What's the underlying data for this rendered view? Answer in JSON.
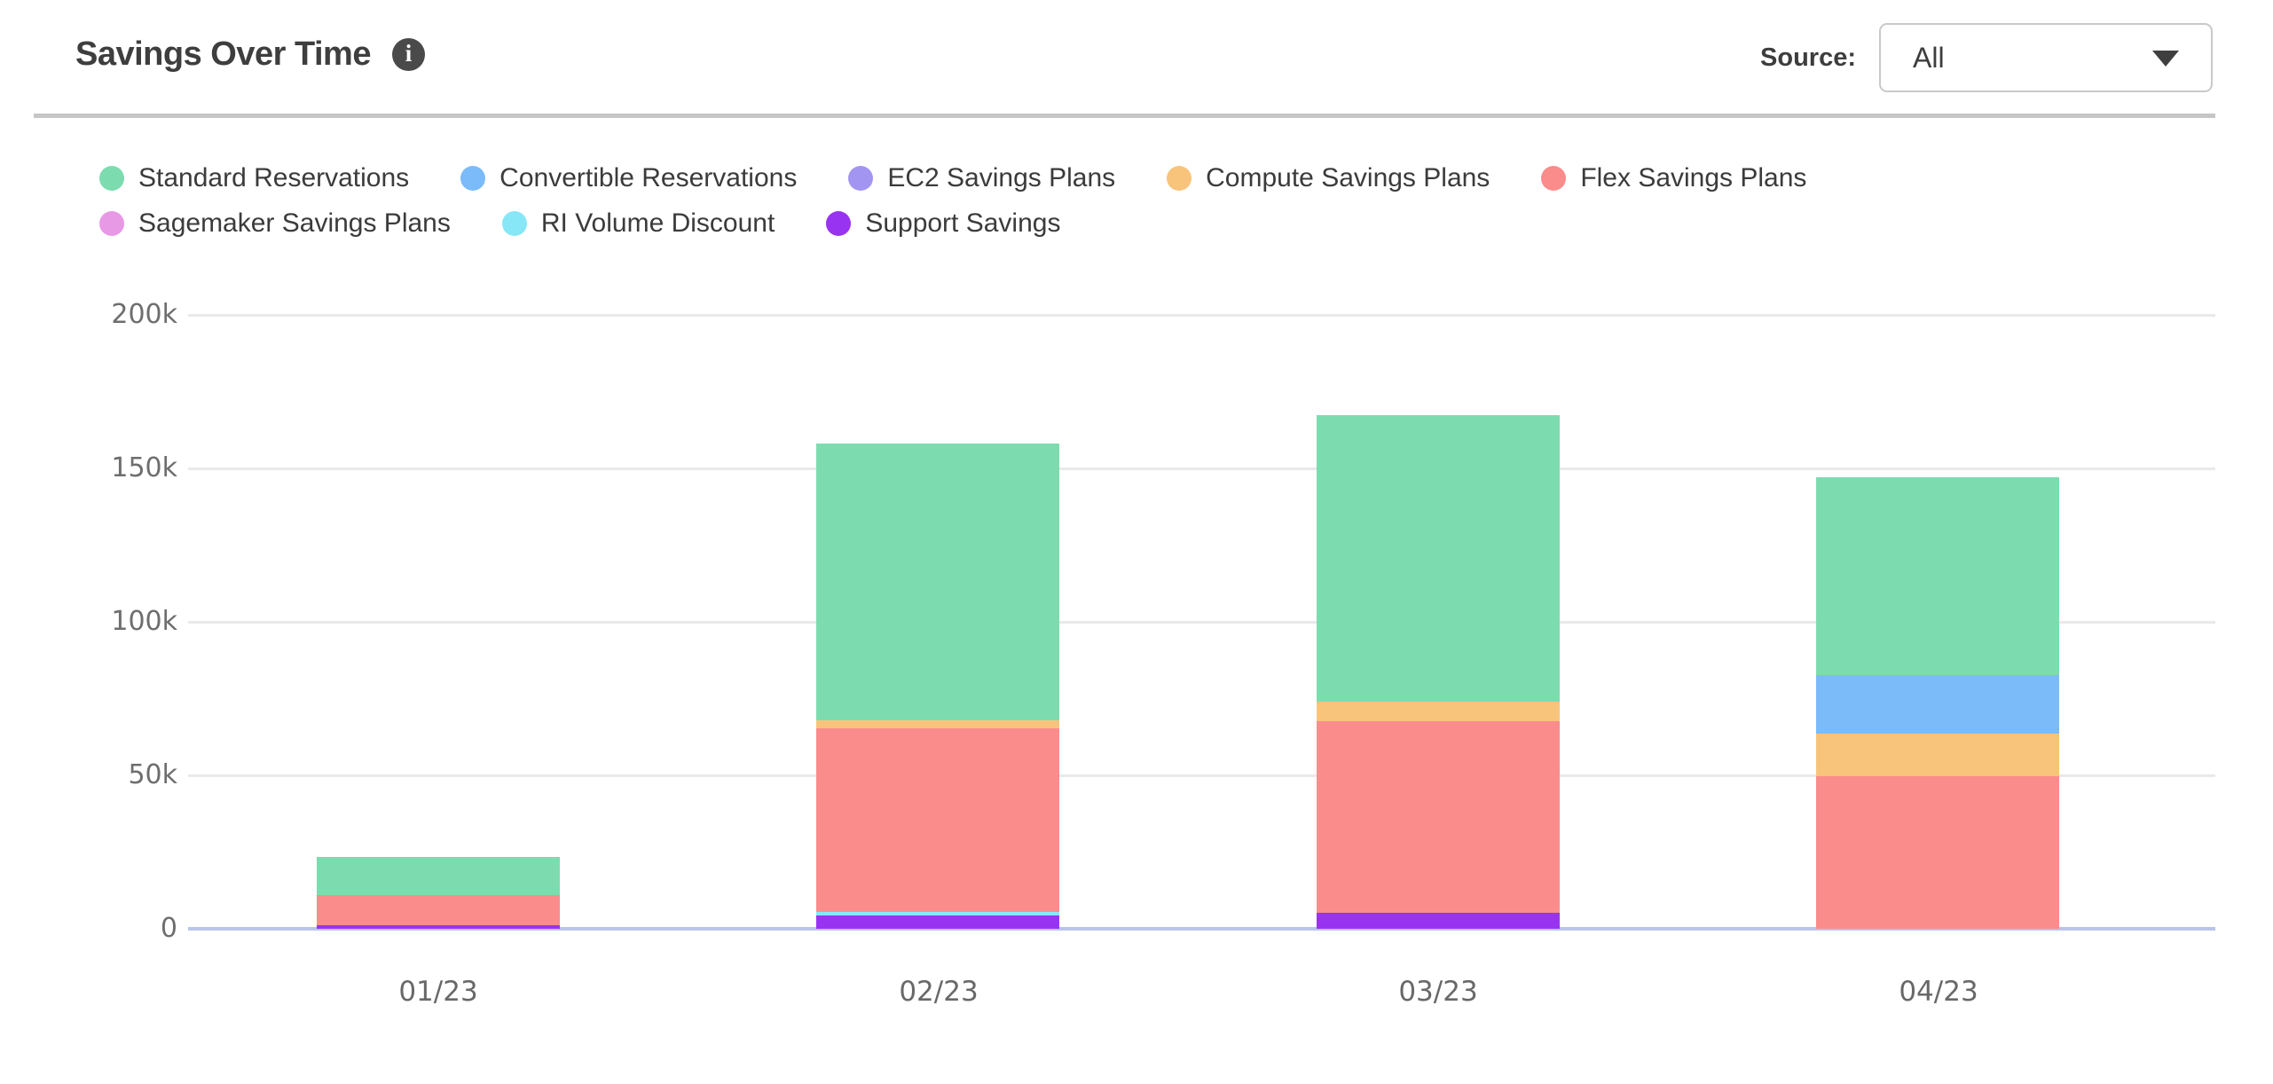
{
  "header": {
    "title": "Savings Over Time",
    "source_label": "Source:",
    "source_value": "All"
  },
  "chart_data": {
    "type": "bar",
    "stacked": true,
    "title": "Savings Over Time",
    "categories": [
      "01/23",
      "02/23",
      "03/23",
      "04/23"
    ],
    "series": [
      {
        "name": "Standard Reservations",
        "color": "#7DDCAF",
        "values": [
          12400,
          90300,
          93300,
          64400
        ]
      },
      {
        "name": "Convertible Reservations",
        "color": "#7CBBFA",
        "values": [
          0,
          0,
          0,
          19100
        ]
      },
      {
        "name": "EC2 Savings Plans",
        "color": "#A295F2",
        "values": [
          0,
          0,
          0,
          0
        ]
      },
      {
        "name": "Compute Savings Plans",
        "color": "#F8C47C",
        "values": [
          0,
          2500,
          6400,
          13900
        ]
      },
      {
        "name": "Flex Savings Plans",
        "color": "#FB8C8C",
        "values": [
          9800,
          59800,
          62400,
          49700
        ]
      },
      {
        "name": "Sagemaker Savings Plans",
        "color": "#E899E6",
        "values": [
          0,
          0,
          0,
          0
        ]
      },
      {
        "name": "RI Volume Discount",
        "color": "#87E7F7",
        "values": [
          0,
          1100,
          0,
          0
        ]
      },
      {
        "name": "Support Savings",
        "color": "#9933F2",
        "values": [
          1200,
          4400,
          5200,
          0
        ]
      }
    ],
    "stack_order_bottom_to_top": [
      "Support Savings",
      "RI Volume Discount",
      "Sagemaker Savings Plans",
      "Flex Savings Plans",
      "Compute Savings Plans",
      "EC2 Savings Plans",
      "Convertible Reservations",
      "Standard Reservations"
    ],
    "totals": [
      23400,
      158100,
      167300,
      147100
    ],
    "y_axis": {
      "min": 0,
      "max": 200000,
      "tick_values": [
        0,
        50000,
        100000,
        150000,
        200000
      ],
      "ticks": [
        "0",
        "50k",
        "100k",
        "150k",
        "200k"
      ]
    },
    "xlabel": "",
    "ylabel": "",
    "grid": true,
    "legend_position": "top",
    "colors": {
      "grid": "#e9e9e9",
      "axis_line": "#b9c4e8",
      "tick_text": "#6e6e6e",
      "legend_text": "#3b3b3b"
    }
  }
}
